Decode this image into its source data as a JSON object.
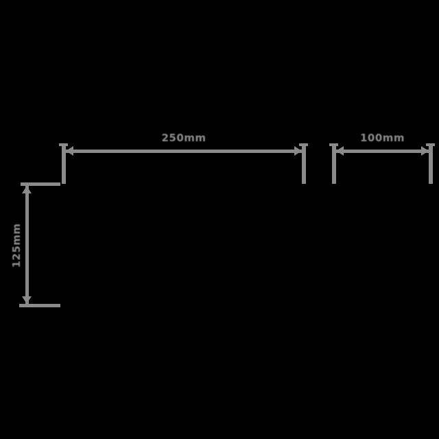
{
  "drawing": {
    "type": "dimension-diagram",
    "background_color": "#000000",
    "line_color": "#8a8a8a",
    "unit": "mm",
    "dimensions": {
      "top_width": {
        "label": "250mm",
        "value": 250,
        "unit": "mm",
        "orientation": "horizontal"
      },
      "right_width": {
        "label": "100mm",
        "value": 100,
        "unit": "mm",
        "orientation": "horizontal"
      },
      "left_height": {
        "label": "125mm",
        "value": 125,
        "unit": "mm",
        "orientation": "vertical"
      }
    }
  }
}
